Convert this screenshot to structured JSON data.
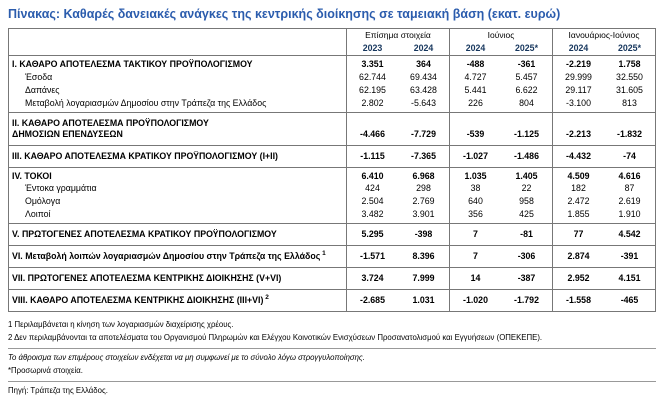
{
  "title": "Πίνακας: Καθαρές δανειακές ανάγκες της κεντρικής διοίκησης σε ταμειακή βάση (εκατ. ευρώ)",
  "table": {
    "col_groups": [
      {
        "label": "Επίσημα στοιχεία",
        "years": [
          "2023",
          "2024"
        ]
      },
      {
        "label": "Ιούνιος",
        "years": [
          "2024",
          "2025*"
        ]
      },
      {
        "label": "Ιανουάριος-Ιούνιος",
        "years": [
          "2024",
          "2025*"
        ]
      }
    ],
    "sections": [
      {
        "rows": [
          {
            "label": "Ι. ΚΑΘΑΡΟ ΑΠΟΤΕΛΕΣΜΑ ΤΑΚΤΙΚΟΥ ΠΡΟΫΠΟΛΟΓΙΣΜΟΥ",
            "bold": true,
            "values": [
              "3.351",
              "364",
              "-488",
              "-361",
              "-2.219",
              "1.758"
            ]
          },
          {
            "label": "Έσοδα",
            "indent": true,
            "values": [
              "62.744",
              "69.434",
              "4.727",
              "5.457",
              "29.999",
              "32.550"
            ]
          },
          {
            "label": "Δαπάνες",
            "indent": true,
            "values": [
              "62.195",
              "63.428",
              "5.441",
              "6.622",
              "29.117",
              "31.605"
            ]
          },
          {
            "label": "Μεταβολή λογαριασμών Δημοσίου στην Τράπεζα της Ελλάδος",
            "indent": true,
            "values": [
              "2.802",
              "-5.643",
              "226",
              "804",
              "-3.100",
              "813"
            ]
          }
        ]
      },
      {
        "rows": [
          {
            "label": "ΙΙ. ΚΑΘΑΡΟ ΑΠΟΤΕΛΕΣΜΑ ΠΡΟΫΠΟΛΟΓΙΣΜΟΥ",
            "label2": "ΔΗΜΟΣΙΩΝ ΕΠΕΝΔΥΣΕΩΝ",
            "bold": true,
            "tall": true,
            "values": [
              "-4.466",
              "-7.729",
              "-539",
              "-1.125",
              "-2.213",
              "-1.832"
            ]
          }
        ]
      },
      {
        "rows": [
          {
            "label": "ΙΙΙ. ΚΑΘΑΡΟ ΑΠΟΤΕΛΕΣΜΑ ΚΡΑΤΙΚΟΥ ΠΡΟΫΠΟΛΟΓΙΣΜΟΥ (Ι+ΙΙ)",
            "bold": true,
            "tall": true,
            "values": [
              "-1.115",
              "-7.365",
              "-1.027",
              "-1.486",
              "-4.432",
              "-74"
            ]
          }
        ]
      },
      {
        "rows": [
          {
            "label": "IV. ΤΟΚΟΙ",
            "bold": true,
            "values": [
              "6.410",
              "6.968",
              "1.035",
              "1.405",
              "4.509",
              "4.616"
            ]
          },
          {
            "label": "Έντοκα γραμμάτια",
            "indent": true,
            "values": [
              "424",
              "298",
              "38",
              "22",
              "182",
              "87"
            ]
          },
          {
            "label": "Ομόλογα",
            "indent": true,
            "values": [
              "2.504",
              "2.769",
              "640",
              "958",
              "2.472",
              "2.619"
            ]
          },
          {
            "label": "Λοιποί",
            "indent": true,
            "values": [
              "3.482",
              "3.901",
              "356",
              "425",
              "1.855",
              "1.910"
            ]
          }
        ]
      },
      {
        "rows": [
          {
            "label": "V. ΠΡΩΤΟΓΕΝΕΣ ΑΠΟΤΕΛΕΣΜΑ ΚΡΑΤΙΚΟΥ ΠΡΟΫΠΟΛΟΓΙΣΜΟΥ",
            "bold": true,
            "tall": true,
            "values": [
              "5.295",
              "-398",
              "7",
              "-81",
              "77",
              "4.542"
            ]
          }
        ]
      },
      {
        "rows": [
          {
            "label": "VI. Μεταβολή λοιπών λογαριασμών Δημοσίου στην Τράπεζα της Ελλάδος",
            "sup": "1",
            "bold": true,
            "tall": true,
            "values": [
              "-1.571",
              "8.396",
              "7",
              "-306",
              "2.874",
              "-391"
            ]
          }
        ]
      },
      {
        "rows": [
          {
            "label": "VII. ΠΡΩΤΟΓΕΝΕΣ ΑΠΟΤΕΛΕΣΜΑ ΚΕΝΤΡΙΚΗΣ ΔΙΟΙΚΗΣΗΣ (V+VI)",
            "bold": true,
            "tall": true,
            "values": [
              "3.724",
              "7.999",
              "14",
              "-387",
              "2.952",
              "4.151"
            ]
          }
        ]
      },
      {
        "rows": [
          {
            "label": "VIII. ΚΑΘΑΡΟ ΑΠΟΤΕΛΕΣΜΑ ΚΕΝΤΡΙΚΗΣ ΔΙΟΙΚΗΣΗΣ (ΙΙΙ+VI)",
            "sup": "2",
            "bold": true,
            "tall": true,
            "values": [
              "-2.685",
              "1.031",
              "-1.020",
              "-1.792",
              "-1.558",
              "-465"
            ]
          }
        ]
      }
    ]
  },
  "footnotes": [
    {
      "text": "1 Περιλαμβάνεται η κίνηση των λογαριασμών διαχείρισης χρέους."
    },
    {
      "text": "2 Δεν περιλαμβάνονται τα αποτελέσματα του Οργανισμού Πληρωμών και Ελέγχου Κοινοτικών Ενισχύσεων Προσανατολισμού και Εγγυήσεων (ΟΠΕΚΕΠΕ)."
    },
    {
      "text": "Το άθροισμα των επιμέρους στοιχείων ενδέχεται να μη συμφωνεί με το σύνολο λόγω στρογγυλοποίησης.",
      "divider": true,
      "italic": true
    },
    {
      "text": "*Προσωρινά στοιχεία."
    },
    {
      "text": "Πηγή: Τράπεζα της Ελλάδος.",
      "divider": true
    }
  ]
}
